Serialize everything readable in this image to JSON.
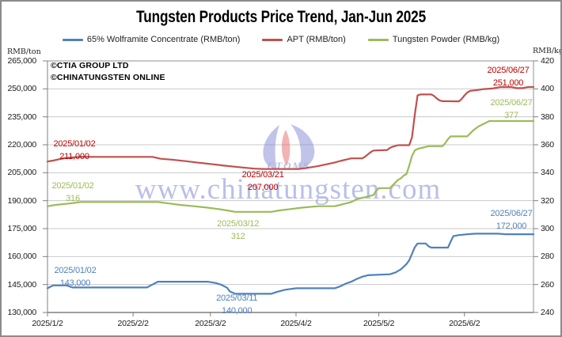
{
  "title": "Tungsten Products Price Trend, Jan-Jun 2025",
  "copyright": {
    "line1": "©CTIA GROUP LTD",
    "line2": "©CHINATUNGSTEN ONLINE"
  },
  "watermark": {
    "text": "www.chinatungsten.com",
    "logo_text": "CTOMS"
  },
  "chart_data": {
    "type": "line",
    "title": "Tungsten Products Price Trend, Jan-Jun 2025",
    "grid": "horizontal",
    "legend_position": "top",
    "legend": [
      {
        "label": "65% Wolframite Concentrate (RMB/ton)",
        "color": "#4F81BD"
      },
      {
        "label": "APT (RMB/ton)",
        "color": "#C0504D"
      },
      {
        "label": "Tungsten Powder (RMB/kg)",
        "color": "#9BBB59"
      }
    ],
    "left_axis": {
      "caption": "RMB/ton",
      "min": 130000,
      "max": 265000,
      "step": 15000,
      "ticks": [
        265000,
        250000,
        235000,
        220000,
        205000,
        190000,
        175000,
        160000,
        145000,
        130000
      ]
    },
    "right_axis": {
      "caption": "RMB/kg",
      "min": 240,
      "max": 420,
      "step": 20,
      "ticks": [
        420,
        400,
        380,
        360,
        340,
        320,
        300,
        280,
        260,
        240
      ]
    },
    "x_axis": {
      "tick_labels": [
        "2025/1/2",
        "2025/2/2",
        "2025/3/2",
        "2025/4/2",
        "2025/5/2",
        "2025/6/2"
      ],
      "start_date": "2025/1/2",
      "end_date": "2025/6/27",
      "note": "series points are [days_since_2025-01-02, value]"
    },
    "series": [
      {
        "id": "wolframite",
        "name": "65% Wolframite Concentrate (RMB/ton)",
        "axis": "left",
        "color": "#4F81BD",
        "annotation_color": "#4F81BD",
        "points": [
          [
            0,
            143000
          ],
          [
            2,
            144500
          ],
          [
            7,
            144500
          ],
          [
            9,
            143400
          ],
          [
            36,
            143400
          ],
          [
            38,
            145000
          ],
          [
            40,
            146500
          ],
          [
            58,
            146500
          ],
          [
            61,
            145800
          ],
          [
            63,
            144800
          ],
          [
            65,
            143300
          ],
          [
            66,
            141300
          ],
          [
            68,
            140000
          ],
          [
            81,
            140000
          ],
          [
            83,
            141000
          ],
          [
            86,
            142200
          ],
          [
            90,
            143000
          ],
          [
            104,
            143000
          ],
          [
            106,
            144000
          ],
          [
            108,
            145500
          ],
          [
            110,
            146500
          ],
          [
            112,
            148000
          ],
          [
            114,
            149200
          ],
          [
            116,
            150000
          ],
          [
            124,
            150500
          ],
          [
            126,
            151500
          ],
          [
            128,
            153200
          ],
          [
            130,
            156000
          ],
          [
            131,
            158000
          ],
          [
            132,
            161500
          ],
          [
            133,
            165000
          ],
          [
            134,
            167000
          ],
          [
            137,
            167000
          ],
          [
            138,
            165500
          ],
          [
            139,
            164800
          ],
          [
            145,
            164800
          ],
          [
            146,
            168000
          ],
          [
            147,
            171000
          ],
          [
            149,
            171500
          ],
          [
            152,
            172000
          ],
          [
            155,
            172300
          ],
          [
            163,
            172300
          ],
          [
            166,
            172000
          ],
          [
            176,
            172000
          ]
        ]
      },
      {
        "id": "apt",
        "name": "APT (RMB/ton)",
        "axis": "left",
        "color": "#C0504D",
        "annotation_color": "#C00000",
        "points": [
          [
            0,
            211000
          ],
          [
            2,
            211500
          ],
          [
            4,
            212200
          ],
          [
            6,
            212800
          ],
          [
            9,
            213200
          ],
          [
            12,
            213500
          ],
          [
            38,
            213500
          ],
          [
            41,
            212500
          ],
          [
            45,
            212000
          ],
          [
            50,
            211200
          ],
          [
            55,
            210300
          ],
          [
            60,
            209500
          ],
          [
            64,
            208800
          ],
          [
            68,
            208200
          ],
          [
            72,
            207600
          ],
          [
            75,
            207200
          ],
          [
            78,
            207000
          ],
          [
            91,
            207000
          ],
          [
            95,
            207800
          ],
          [
            98,
            208600
          ],
          [
            101,
            209500
          ],
          [
            104,
            210500
          ],
          [
            106,
            211300
          ],
          [
            108,
            212000
          ],
          [
            110,
            212700
          ],
          [
            114,
            212700
          ],
          [
            115,
            213600
          ],
          [
            116,
            214800
          ],
          [
            117,
            216000
          ],
          [
            118,
            216900
          ],
          [
            123,
            217200
          ],
          [
            124,
            218300
          ],
          [
            125,
            219000
          ],
          [
            127,
            219800
          ],
          [
            131,
            219800
          ],
          [
            132,
            224000
          ],
          [
            133,
            236000
          ],
          [
            134,
            246500
          ],
          [
            135,
            247000
          ],
          [
            139,
            247000
          ],
          [
            140,
            246200
          ],
          [
            141,
            244800
          ],
          [
            142,
            243800
          ],
          [
            143,
            243400
          ],
          [
            149,
            243300
          ],
          [
            150,
            244600
          ],
          [
            151,
            246500
          ],
          [
            152,
            248000
          ],
          [
            153,
            248900
          ],
          [
            156,
            249400
          ],
          [
            158,
            249900
          ],
          [
            161,
            250200
          ],
          [
            164,
            251000
          ],
          [
            168,
            251000
          ],
          [
            170,
            250400
          ],
          [
            172,
            250400
          ],
          [
            174,
            251000
          ],
          [
            176,
            251000
          ]
        ]
      },
      {
        "id": "powder",
        "name": "Tungsten Powder (RMB/kg)",
        "axis": "right",
        "color": "#9BBB59",
        "annotation_color": "#9BBB59",
        "points": [
          [
            0,
            316
          ],
          [
            3,
            317
          ],
          [
            8,
            318
          ],
          [
            12,
            319
          ],
          [
            40,
            319
          ],
          [
            44,
            318
          ],
          [
            48,
            317
          ],
          [
            53,
            316
          ],
          [
            58,
            315
          ],
          [
            62,
            314
          ],
          [
            65,
            313
          ],
          [
            68,
            312
          ],
          [
            81,
            312
          ],
          [
            84,
            313
          ],
          [
            88,
            314
          ],
          [
            92,
            315
          ],
          [
            98,
            316
          ],
          [
            104,
            316
          ],
          [
            106,
            317
          ],
          [
            108,
            318
          ],
          [
            110,
            319
          ],
          [
            112,
            321
          ],
          [
            114,
            322
          ],
          [
            116,
            323
          ],
          [
            118,
            324
          ],
          [
            119,
            327
          ],
          [
            120,
            329
          ],
          [
            124,
            329
          ],
          [
            125,
            331
          ],
          [
            126,
            333
          ],
          [
            127,
            335
          ],
          [
            128,
            336
          ],
          [
            129,
            338
          ],
          [
            130,
            339
          ],
          [
            131,
            345
          ],
          [
            132,
            352
          ],
          [
            133,
            356
          ],
          [
            134,
            357
          ],
          [
            136,
            358
          ],
          [
            138,
            359
          ],
          [
            143,
            359
          ],
          [
            144,
            361
          ],
          [
            145,
            364
          ],
          [
            146,
            366
          ],
          [
            152,
            366
          ],
          [
            154,
            370
          ],
          [
            156,
            373
          ],
          [
            158,
            375
          ],
          [
            160,
            377
          ],
          [
            176,
            377
          ]
        ]
      }
    ],
    "annotations": [
      {
        "id": "apt-start",
        "series": "apt",
        "date": "2025/01/02",
        "value": 211000
      },
      {
        "id": "powder-start",
        "series": "powder",
        "date": "2025/01/02",
        "value": 316
      },
      {
        "id": "wolframite-start",
        "series": "wolframite",
        "date": "2025/01/02",
        "value": 143000
      },
      {
        "id": "apt-min",
        "series": "apt",
        "date": "2025/03/21",
        "value": 207000
      },
      {
        "id": "powder-min",
        "series": "powder",
        "date": "2025/03/12",
        "value": 312
      },
      {
        "id": "wolframite-min",
        "series": "wolframite",
        "date": "2025/03/11",
        "value": 140000
      },
      {
        "id": "apt-end",
        "series": "apt",
        "date": "2025/06/27",
        "value": 251000
      },
      {
        "id": "powder-end",
        "series": "powder",
        "date": "2025/06/27",
        "value": 377
      },
      {
        "id": "wolframite-end",
        "series": "wolframite",
        "date": "2025/06/27",
        "value": 172000
      }
    ]
  }
}
